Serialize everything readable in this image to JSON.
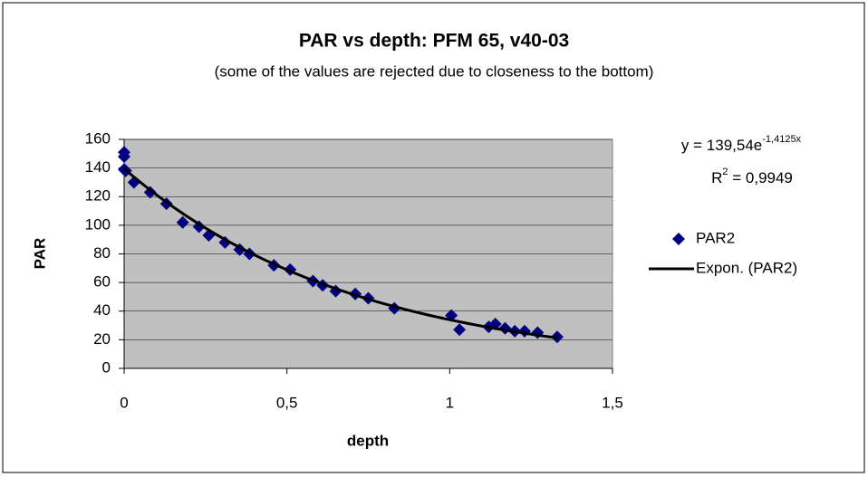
{
  "chart_data": {
    "type": "scatter",
    "title": "PAR vs depth: PFM 65, v40-03",
    "subtitle": "(some of the values are rejected due to closeness to the bottom)",
    "x_label": "depth",
    "y_label": "PAR",
    "series": [
      {
        "name": "PAR2",
        "color": "#000080",
        "x": [
          0,
          0,
          0,
          0.005,
          0.03,
          0.08,
          0.13,
          0.18,
          0.23,
          0.26,
          0.31,
          0.355,
          0.385,
          0.46,
          0.51,
          0.58,
          0.61,
          0.65,
          0.71,
          0.75,
          0.83,
          1.005,
          1.03,
          1.12,
          1.14,
          1.17,
          1.2,
          1.23,
          1.27,
          1.33
        ],
        "values": [
          151,
          148,
          139,
          138,
          130,
          123,
          115,
          102,
          99,
          93,
          88,
          83,
          80,
          72,
          69,
          61,
          58,
          54,
          52,
          49,
          42,
          37,
          27,
          29,
          31,
          28,
          26,
          26,
          25,
          22
        ]
      }
    ],
    "trendline": {
      "name": "Expon. (PAR2)",
      "color": "#000000",
      "a": 139.54,
      "b": -1.4125,
      "equation": {
        "text": "y = 139,54e",
        "exponent": "-1,4125x"
      },
      "r_squared": {
        "text": "R",
        "exponent": "2",
        "rest": " = 0,9949"
      }
    },
    "xlim": [
      0,
      1.5
    ],
    "xticks": [
      0,
      {
        "value": 0.5,
        "label": "0,5"
      },
      1,
      {
        "value": 1.5,
        "label": "1,5"
      }
    ],
    "ylim": [
      0,
      160
    ],
    "yticks": [
      0,
      20,
      40,
      60,
      80,
      100,
      120,
      140,
      160
    ],
    "grid": true,
    "plot_background": "#c0c0c0",
    "legend": "right"
  }
}
